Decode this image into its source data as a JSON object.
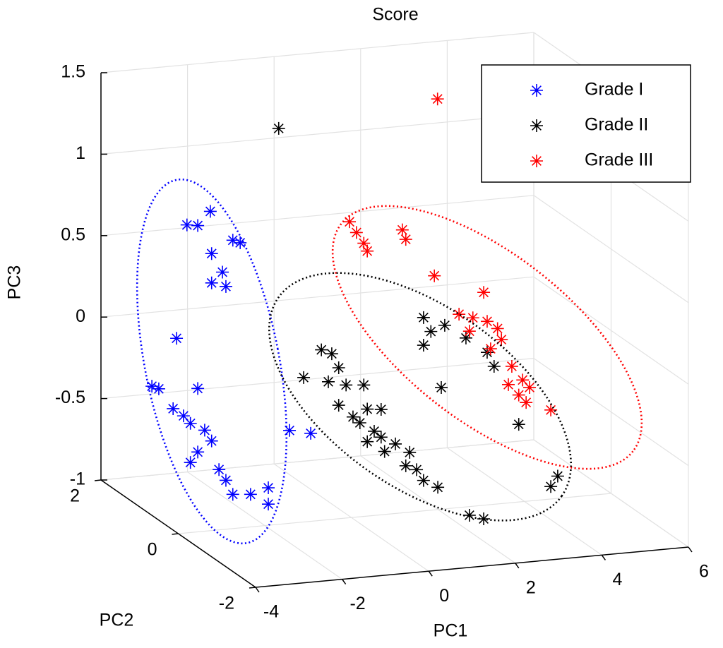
{
  "chart_data": {
    "type": "scatter3d",
    "title": "Score",
    "xlabel": "PC1",
    "ylabel": "PC2",
    "zlabel": "PC3",
    "xlim": [
      -4,
      6
    ],
    "ylim": [
      -2,
      2
    ],
    "zlim": [
      -1,
      1.5
    ],
    "xticks": [
      -4,
      -2,
      0,
      2,
      4,
      6
    ],
    "yticks": [
      -2,
      0,
      2
    ],
    "zticks": [
      -1,
      -0.5,
      0,
      0.5,
      1,
      1.5
    ],
    "grid": true,
    "legend": "northeast",
    "series": [
      {
        "name": "Grade I",
        "color": "#0000ff",
        "x": [
          -2.46,
          -2.21,
          -1.92,
          -1.4,
          -1.23,
          -1.89,
          -1.64,
          -1.89,
          -1.56,
          -2.7,
          -3.27,
          -3.11,
          -2.21,
          -2.78,
          -2.54,
          -2.38,
          -2.05,
          -1.89,
          -2.21,
          -2.38,
          -1.72,
          -1.56,
          -2.74,
          -2.33,
          -1.92,
          -1.92,
          -1.43,
          -0.94
        ],
        "y": [
          1.5,
          1.5,
          1.5,
          1.5,
          1.5,
          1.5,
          1.5,
          1.5,
          1.5,
          1.5,
          1.5,
          1.5,
          1.5,
          1.5,
          1.5,
          1.5,
          1.5,
          1.5,
          1.5,
          1.5,
          1.5,
          1.5,
          0,
          0,
          0,
          0,
          0,
          0
        ],
        "z": [
          0.61,
          0.6,
          0.68,
          0.49,
          0.47,
          0.42,
          0.3,
          0.24,
          0.21,
          -0.08,
          -0.36,
          -0.38,
          -0.4,
          -0.51,
          -0.56,
          -0.61,
          -0.66,
          -0.73,
          -0.79,
          -0.85,
          -0.91,
          -0.98,
          -0.79,
          -0.8,
          -0.77,
          -0.87,
          -0.43,
          -0.46
        ]
      },
      {
        "name": "Grade II",
        "color": "#000000",
        "x": [
          -0.34,
          -1.55,
          -1.14,
          -0.9,
          -0.74,
          -0.98,
          -0.57,
          -0.16,
          -0.74,
          -0.41,
          -0.25,
          0.08,
          -0.08,
          0.24,
          0.32,
          0.57,
          0.81,
          1.06,
          1.22,
          1.55,
          0.9,
          1.22,
          1.39,
          1.71,
          1.22,
          2.2,
          2.69,
          2.85,
          1.63,
          2.28,
          2.61,
          3.42,
          4.16,
          4.32,
          0.24,
          -0.08
        ],
        "y": [
          1.5,
          -0.5,
          -0.5,
          -0.5,
          -0.5,
          -0.5,
          -0.5,
          -0.5,
          -0.5,
          -0.5,
          -0.5,
          -0.5,
          -0.5,
          -0.5,
          -0.5,
          -0.5,
          -0.5,
          -0.5,
          -0.5,
          -0.5,
          -0.5,
          -0.5,
          -0.5,
          -0.5,
          -0.5,
          -0.5,
          -0.5,
          -0.5,
          -0.5,
          -0.5,
          -0.5,
          -0.5,
          -0.5,
          -0.5,
          -0.5,
          -0.5
        ],
        "z": [
          1.15,
          -0.02,
          0.14,
          0.11,
          0.02,
          -0.06,
          -0.09,
          -0.1,
          -0.21,
          -0.29,
          -0.33,
          -0.39,
          -0.45,
          -0.43,
          -0.52,
          -0.48,
          -0.62,
          -0.65,
          -0.72,
          -0.77,
          -0.54,
          0.28,
          0.19,
          0.22,
          0.11,
          0.13,
          0.03,
          -0.06,
          -0.16,
          -0.96,
          -0.99,
          -0.43,
          -0.83,
          -0.77,
          -0.26,
          -0.25
        ]
      },
      {
        "name": "Grade III",
        "color": "#ff0000",
        "x": [
          3.33,
          -0.49,
          -0.33,
          -0.16,
          -0.08,
          0.73,
          0.81,
          1.47,
          2.61,
          2.04,
          2.36,
          2.69,
          2.93,
          3.02,
          2.77,
          3.26,
          3.18,
          3.51,
          3.42,
          3.67,
          3.59,
          4.16,
          2.28
        ],
        "y": [
          1.5,
          -0.5,
          -0.5,
          -0.5,
          -0.5,
          -0.5,
          -0.5,
          -0.5,
          -0.5,
          -0.5,
          -0.5,
          -0.5,
          -0.5,
          -0.5,
          -0.5,
          -0.5,
          -0.5,
          -0.5,
          -0.5,
          -0.5,
          -0.5,
          -0.5,
          -0.5
        ],
        "z": [
          1.24,
          0.91,
          0.84,
          0.77,
          0.72,
          0.83,
          0.77,
          0.53,
          0.4,
          0.28,
          0.25,
          0.22,
          0.17,
          0.1,
          0.05,
          -0.07,
          -0.18,
          -0.16,
          -0.25,
          -0.21,
          -0.3,
          -0.36,
          0.17
        ]
      }
    ]
  }
}
